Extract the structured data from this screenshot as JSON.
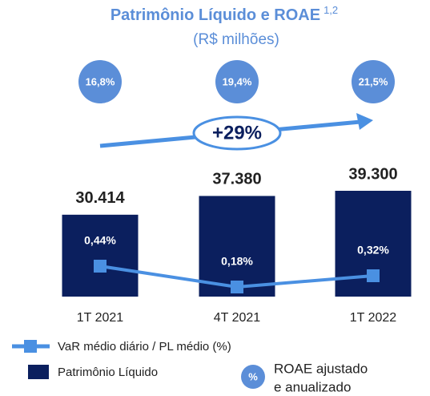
{
  "chart_data": {
    "type": "bar",
    "title": "Patrimônio Líquido e ROAE",
    "title_note": "1,2",
    "subtitle": "(R$ milhões)",
    "categories": [
      "1T 2021",
      "4T 2021",
      "1T 2022"
    ],
    "series": [
      {
        "name": "Patrimônio Líquido",
        "type": "bar",
        "color": "#0b1f5e",
        "values": [
          30414,
          37380,
          39300
        ],
        "value_labels": [
          "30.414",
          "37.380",
          "39.300"
        ]
      },
      {
        "name": "VaR médio diário / PL médio (%)",
        "type": "line",
        "color": "#4a90e2",
        "values": [
          0.44,
          0.18,
          0.32
        ],
        "value_labels": [
          "0,44%",
          "0,18%",
          "0,32%"
        ]
      }
    ],
    "roae": {
      "name_lines": [
        "ROAE ajustado",
        "e anualizado"
      ],
      "symbol": "%",
      "color": "#5b8ed8",
      "values": [
        16.8,
        19.4,
        21.5
      ],
      "value_labels": [
        "16,8%",
        "19,4%",
        "21,5%"
      ]
    },
    "annotation": "+29%"
  }
}
